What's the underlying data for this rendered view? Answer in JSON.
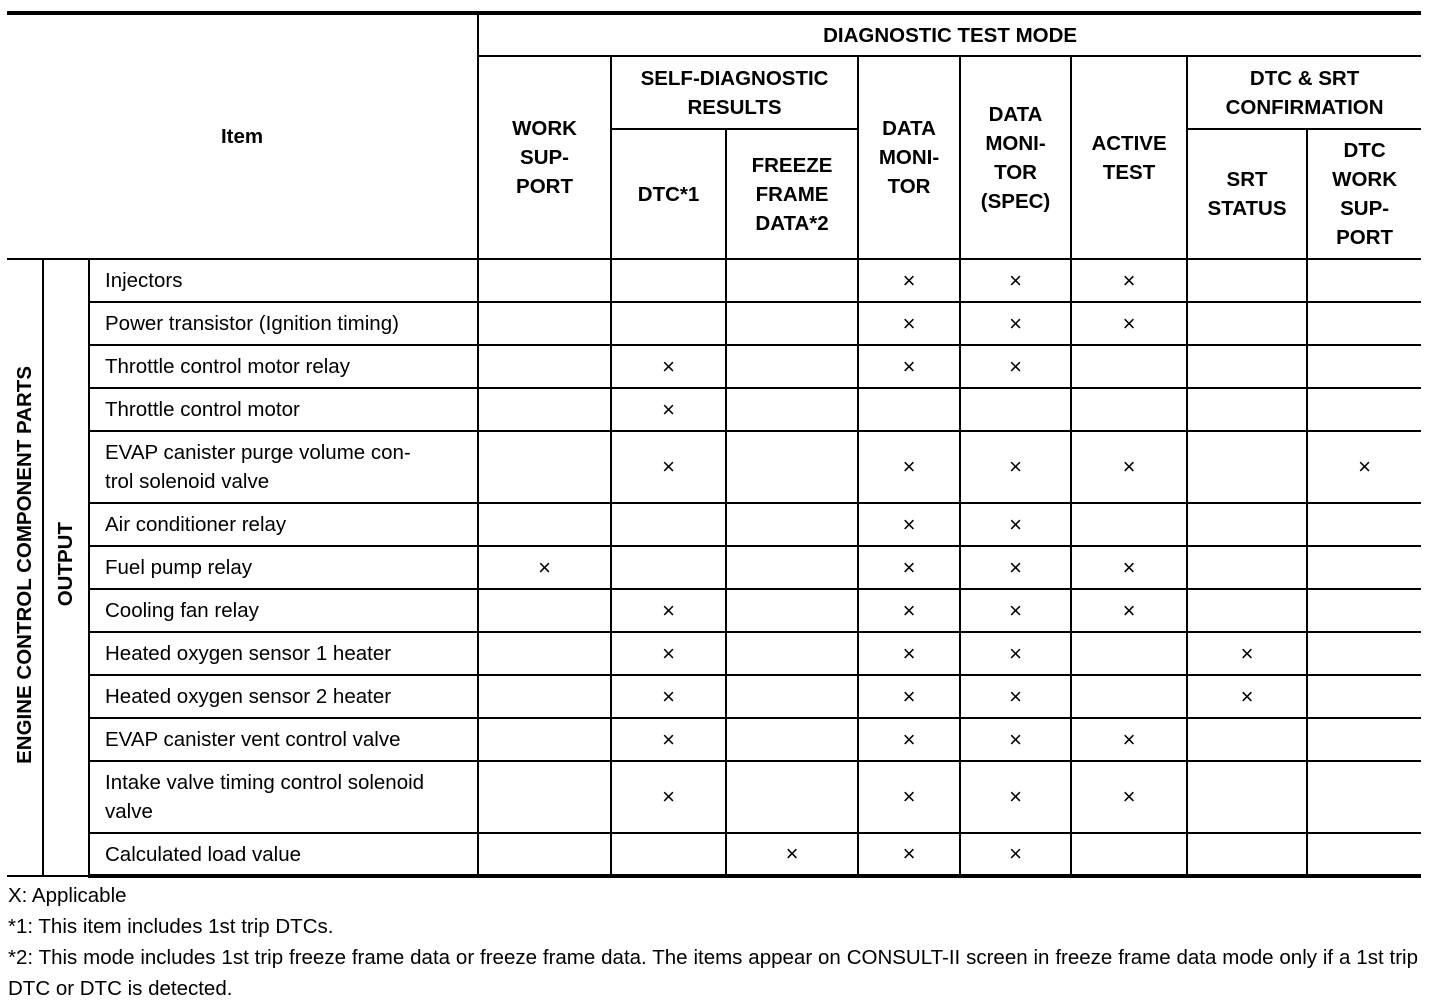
{
  "header": {
    "item": "Item",
    "diagnostic_test_mode": "DIAGNOSTIC TEST MODE",
    "work_support": "WORK\nSUP-\nPORT",
    "self_diagnostic_results": "SELF-DIAGNOSTIC\nRESULTS",
    "dtc": "DTC*1",
    "freeze_frame_data": "FREEZE\nFRAME\nDATA*2",
    "data_monitor": "DATA\nMONI-\nTOR",
    "data_monitor_spec": "DATA\nMONI-\nTOR\n(SPEC)",
    "active_test": "ACTIVE\nTEST",
    "dtc_srt_confirmation": "DTC & SRT\nCONFIRMATION",
    "srt_status": "SRT\nSTATUS",
    "dtc_work_support": "DTC\nWORK\nSUP-\nPORT"
  },
  "group_label": "ENGINE CONTROL COMPONENT PARTS",
  "subgroup_label": "OUTPUT",
  "mark_symbol": "×",
  "columns": [
    "work_support",
    "dtc",
    "freeze_frame_data",
    "data_monitor",
    "data_monitor_spec",
    "active_test",
    "srt_status",
    "dtc_work_support"
  ],
  "rows": [
    {
      "item": "Injectors",
      "marks": [
        false,
        false,
        false,
        true,
        true,
        true,
        false,
        false
      ]
    },
    {
      "item": "Power transistor (Ignition timing)",
      "marks": [
        false,
        false,
        false,
        true,
        true,
        true,
        false,
        false
      ]
    },
    {
      "item": "Throttle control motor relay",
      "marks": [
        false,
        true,
        false,
        true,
        true,
        false,
        false,
        false
      ]
    },
    {
      "item": "Throttle control motor",
      "marks": [
        false,
        true,
        false,
        false,
        false,
        false,
        false,
        false
      ]
    },
    {
      "item": "EVAP canister purge volume con-\ntrol solenoid valve",
      "marks": [
        false,
        true,
        false,
        true,
        true,
        true,
        false,
        true
      ]
    },
    {
      "item": "Air conditioner relay",
      "marks": [
        false,
        false,
        false,
        true,
        true,
        false,
        false,
        false
      ]
    },
    {
      "item": "Fuel pump relay",
      "marks": [
        true,
        false,
        false,
        true,
        true,
        true,
        false,
        false
      ]
    },
    {
      "item": "Cooling fan relay",
      "marks": [
        false,
        true,
        false,
        true,
        true,
        true,
        false,
        false
      ]
    },
    {
      "item": "Heated oxygen sensor 1 heater",
      "marks": [
        false,
        true,
        false,
        true,
        true,
        false,
        true,
        false
      ]
    },
    {
      "item": "Heated oxygen sensor 2 heater",
      "marks": [
        false,
        true,
        false,
        true,
        true,
        false,
        true,
        false
      ]
    },
    {
      "item": "EVAP canister vent control valve",
      "marks": [
        false,
        true,
        false,
        true,
        true,
        true,
        false,
        false
      ]
    },
    {
      "item": "Intake valve timing control solenoid\nvalve",
      "marks": [
        false,
        true,
        false,
        true,
        true,
        true,
        false,
        false
      ]
    },
    {
      "item": "Calculated load value",
      "marks": [
        false,
        false,
        true,
        true,
        true,
        false,
        false,
        false
      ]
    }
  ],
  "notes": [
    "X: Applicable",
    "*1: This item includes 1st trip DTCs.",
    "*2: This mode includes 1st trip freeze frame data or freeze frame data. The items appear on CONSULT-II screen in freeze frame data mode only if a 1st trip DTC or DTC is detected."
  ]
}
